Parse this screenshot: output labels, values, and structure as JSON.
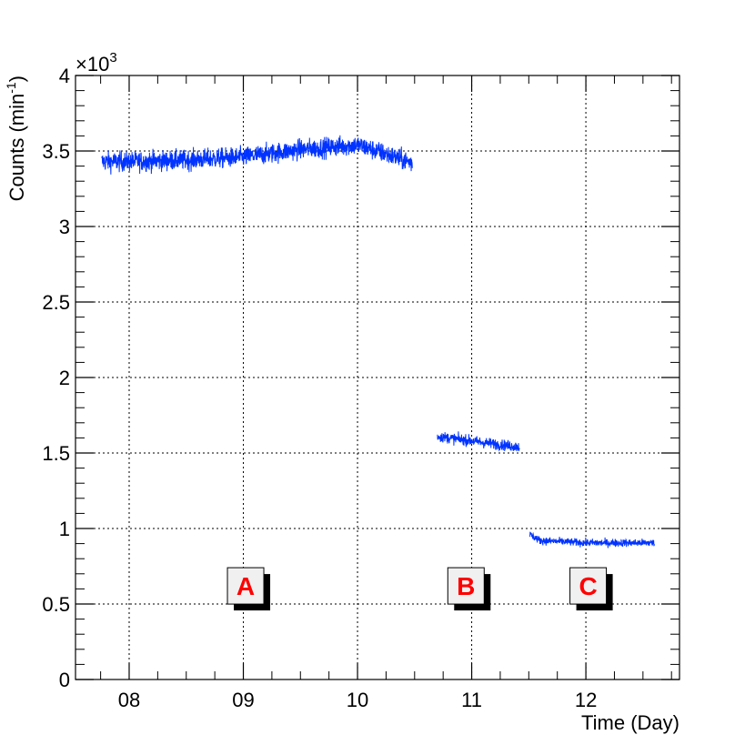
{
  "chart_data": {
    "type": "line",
    "title": "",
    "xlabel": "Time (Day)",
    "ylabel_main": "Counts (min",
    "ylabel_sup": "-1",
    "ylabel_tail": ")",
    "y_multiplier_base": "×10",
    "y_multiplier_exp": "3",
    "xlim": [
      7.53,
      12.82
    ],
    "ylim": [
      0,
      4
    ],
    "y_scale": 1000,
    "x_ticks": [
      {
        "value": 8,
        "label": "08"
      },
      {
        "value": 9,
        "label": "09"
      },
      {
        "value": 10,
        "label": "10"
      },
      {
        "value": 11,
        "label": "11"
      },
      {
        "value": 12,
        "label": "12"
      }
    ],
    "y_ticks": [
      {
        "value": 0,
        "label": "0"
      },
      {
        "value": 0.5,
        "label": "0.5"
      },
      {
        "value": 1,
        "label": "1"
      },
      {
        "value": 1.5,
        "label": "1.5"
      },
      {
        "value": 2,
        "label": "2"
      },
      {
        "value": 2.5,
        "label": "2.5"
      },
      {
        "value": 3,
        "label": "3"
      },
      {
        "value": 3.5,
        "label": "3.5"
      },
      {
        "value": 4,
        "label": "4"
      }
    ],
    "grid": true,
    "line_color": "#0033ff",
    "series": [
      {
        "x": [
          7.76,
          8.0,
          8.5,
          9.0,
          9.5,
          10.0,
          10.25,
          10.48
        ],
        "values": [
          3430,
          3430,
          3440,
          3460,
          3510,
          3540,
          3480,
          3420
        ],
        "noise": 65
      },
      {
        "x": [
          10.7,
          10.9,
          11.1,
          11.3,
          11.42
        ],
        "values": [
          1610,
          1590,
          1570,
          1550,
          1540
        ],
        "noise": 35
      },
      {
        "x": [
          11.51,
          11.6,
          12.0,
          12.4,
          12.6
        ],
        "values": [
          960,
          920,
          905,
          905,
          905
        ],
        "noise": 25
      }
    ],
    "annotations": [
      {
        "text": "A",
        "x": 9.02,
        "y": 0.62
      },
      {
        "text": "B",
        "x": 10.95,
        "y": 0.62
      },
      {
        "text": "C",
        "x": 12.02,
        "y": 0.62
      }
    ],
    "annotation_text_color": "#ff0000",
    "annotation_box_color": "#f0f0f0"
  }
}
